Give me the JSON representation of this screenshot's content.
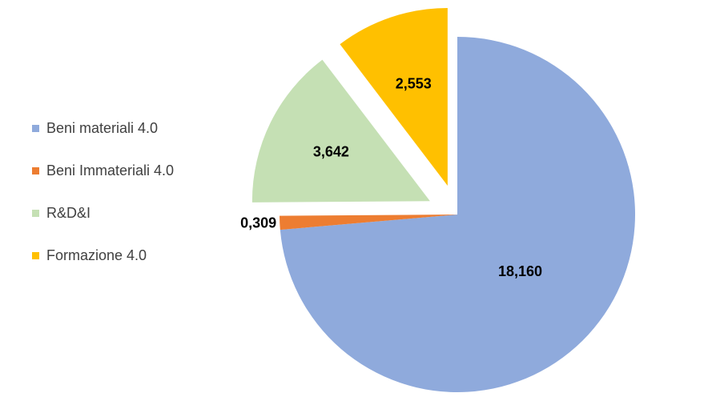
{
  "chart_data": {
    "type": "pie",
    "exploded": true,
    "categories": [
      "Beni materiali 4.0",
      "Beni Immateriali 4.0",
      "R&D&I",
      "Formazione 4.0"
    ],
    "values": [
      18.16,
      0.309,
      3.642,
      2.553
    ],
    "data_labels": [
      "18,160",
      "0,309",
      "3,642",
      "2,553"
    ],
    "colors": [
      "#8faadc",
      "#ed7d31",
      "#c5e0b4",
      "#ffc000"
    ],
    "legend_position": "left"
  }
}
